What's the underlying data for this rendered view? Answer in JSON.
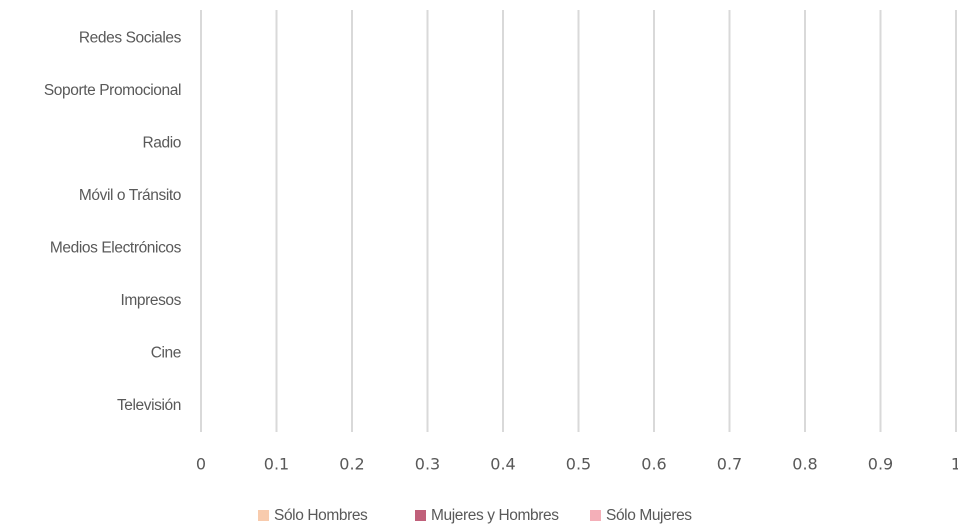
{
  "chart_data": {
    "type": "bar",
    "orientation": "horizontal",
    "stacked": true,
    "categories": [
      "Televisión",
      "Cine",
      "Impresos",
      "Medios Electrónicos",
      "Móvil o Tránsito",
      "Radio",
      "Soporte Promocional",
      "Redes Sociales"
    ],
    "series": [
      {
        "name": "Sólo Hombres",
        "color": "#f8cbad",
        "values": [
          null,
          null,
          null,
          null,
          null,
          null,
          null,
          null
        ]
      },
      {
        "name": "Mujeres y Hombres",
        "color": "#c0607a",
        "values": [
          null,
          null,
          null,
          null,
          null,
          null,
          null,
          null
        ]
      },
      {
        "name": "Sólo Mujeres",
        "color": "#f4afb8",
        "values": [
          null,
          null,
          null,
          null,
          null,
          null,
          null,
          null
        ]
      }
    ],
    "xlim": [
      0,
      1
    ],
    "xticks": [
      0,
      0.1,
      0.2,
      0.3,
      0.4,
      0.5,
      0.6,
      0.7,
      0.8,
      0.9,
      1
    ],
    "grid": true,
    "legend": "bottom"
  }
}
